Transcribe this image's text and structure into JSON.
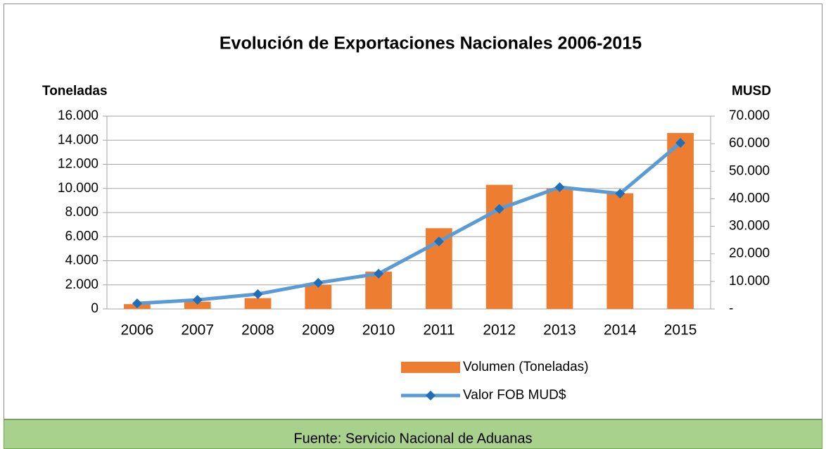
{
  "chart_data": {
    "type": "bar",
    "title": "Evolución de Exportaciones Nacionales 2006-2015",
    "ylabel": "Toneladas",
    "y2label": "MUSD",
    "source": "Fuente: Servicio Nacional de Aduanas",
    "categories": [
      "2006",
      "2007",
      "2008",
      "2009",
      "2010",
      "2011",
      "2012",
      "2013",
      "2014",
      "2015"
    ],
    "series": [
      {
        "name": "Volumen (Toneladas)",
        "type": "bar",
        "color": "#ed7d31",
        "values": [
          400,
          600,
          900,
          2000,
          3100,
          6700,
          10300,
          10000,
          9600,
          14600
        ]
      },
      {
        "name": "Valor FOB MUD$",
        "type": "line",
        "axis": "y2",
        "color": "#5b9bd5",
        "marker_color": "#1f6fb8",
        "values": [
          2000,
          3300,
          5400,
          9500,
          12800,
          24500,
          36300,
          44200,
          41900,
          60300
        ]
      }
    ],
    "ylim": [
      0,
      16000
    ],
    "yticks": [
      0,
      {
        "value": 2000,
        "label": "2.000"
      },
      {
        "value": 4000,
        "label": "4.000"
      },
      {
        "value": 6000,
        "label": "6.000"
      },
      {
        "value": 8000,
        "label": "8.000"
      },
      {
        "value": 10000,
        "label": "10.000"
      },
      {
        "value": 12000,
        "label": "12.000"
      },
      {
        "value": 14000,
        "label": "14.000"
      },
      {
        "value": 16000,
        "label": "16.000"
      }
    ],
    "y2lim": [
      0,
      70000
    ],
    "y2ticks": [
      {
        "value": 0,
        "label": "-"
      },
      {
        "value": 10000,
        "label": "10.000"
      },
      {
        "value": 20000,
        "label": "20.000"
      },
      {
        "value": 30000,
        "label": "30.000"
      },
      {
        "value": 40000,
        "label": "40.000"
      },
      {
        "value": 50000,
        "label": "50.000"
      },
      {
        "value": 60000,
        "label": "60.000"
      },
      {
        "value": 70000,
        "label": "70.000"
      }
    ],
    "grid": true
  }
}
